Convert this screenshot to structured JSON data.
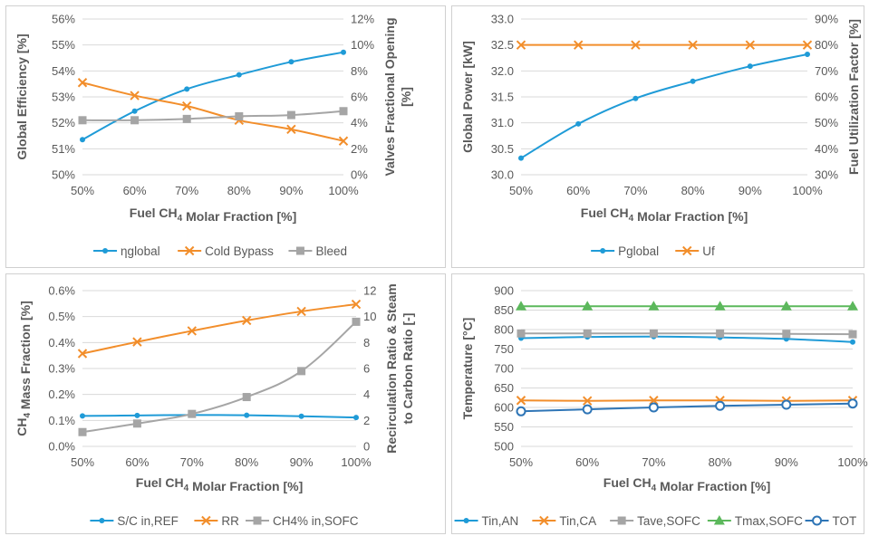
{
  "chart_data": [
    {
      "type": "line",
      "categories": [
        "50%",
        "60%",
        "70%",
        "80%",
        "90%",
        "100%"
      ],
      "xlabel": "Fuel CH₄ Molar Fraction [%]",
      "ylabel": "Global Efficiency [%]",
      "y2label": "Valves Fractional Opening [%]",
      "ylim": [
        50,
        56
      ],
      "y2lim": [
        0,
        12
      ],
      "yticks": [
        "50%",
        "51%",
        "52%",
        "53%",
        "54%",
        "55%",
        "56%"
      ],
      "y2ticks": [
        "0%",
        "2%",
        "4%",
        "6%",
        "8%",
        "10%",
        "12%"
      ],
      "legend_position": "bottom",
      "grid": true,
      "series": [
        {
          "name": "ηglobal",
          "axis": "left",
          "marker": "dot",
          "color": "#1f9bd7",
          "values": [
            51.35,
            52.45,
            53.3,
            53.85,
            54.35,
            54.72
          ]
        },
        {
          "name": "Cold Bypass",
          "axis": "right",
          "marker": "x",
          "color": "#f28e2b",
          "values": [
            7.1,
            6.1,
            5.3,
            4.2,
            3.5,
            2.6
          ]
        },
        {
          "name": "Bleed",
          "axis": "right",
          "marker": "square",
          "color": "#a5a5a5",
          "values": [
            4.2,
            4.2,
            4.3,
            4.5,
            4.6,
            4.9
          ]
        }
      ]
    },
    {
      "type": "line",
      "categories": [
        "50%",
        "60%",
        "70%",
        "80%",
        "90%",
        "100%"
      ],
      "xlabel": "Fuel CH₄ Molar Fraction [%]",
      "ylabel": "Global Power [kW]",
      "y2label": "Fuel Utilization Factor [%]",
      "ylim": [
        30.0,
        33.0
      ],
      "y2lim": [
        30,
        90
      ],
      "yticks": [
        "30.0",
        "30.5",
        "31.0",
        "31.5",
        "32.0",
        "32.5",
        "33.0"
      ],
      "y2ticks": [
        "30%",
        "40%",
        "50%",
        "60%",
        "70%",
        "80%",
        "90%"
      ],
      "legend_position": "bottom",
      "grid": true,
      "series": [
        {
          "name": "Pglobal",
          "axis": "left",
          "marker": "dot",
          "color": "#1f9bd7",
          "values": [
            30.32,
            30.98,
            31.47,
            31.8,
            32.09,
            32.32
          ]
        },
        {
          "name": "Uf",
          "axis": "right",
          "marker": "x",
          "color": "#f28e2b",
          "values": [
            80,
            80,
            80,
            80,
            80,
            80
          ]
        }
      ]
    },
    {
      "type": "line",
      "categories": [
        "50%",
        "60%",
        "70%",
        "80%",
        "90%",
        "100%"
      ],
      "xlabel": "Fuel CH₄ Molar Fraction [%]",
      "ylabel": "CH₄ Mass Fraction [%]",
      "y2label": "Recirculation Ratio & Steam to Carbon Ratio [-]",
      "ylim": [
        0.0,
        0.6
      ],
      "y2lim": [
        0,
        12
      ],
      "yticks": [
        "0.0%",
        "0.1%",
        "0.2%",
        "0.3%",
        "0.4%",
        "0.5%",
        "0.6%"
      ],
      "y2ticks": [
        "0",
        "2",
        "4",
        "6",
        "8",
        "10",
        "12"
      ],
      "legend_position": "bottom",
      "grid": true,
      "series": [
        {
          "name": "S/C in,REF",
          "axis": "right",
          "marker": "dot",
          "color": "#1f9bd7",
          "values": [
            2.35,
            2.38,
            2.42,
            2.4,
            2.32,
            2.22
          ]
        },
        {
          "name": "RR",
          "axis": "right",
          "marker": "x",
          "color": "#f28e2b",
          "values": [
            7.15,
            8.05,
            8.9,
            9.7,
            10.4,
            10.95
          ]
        },
        {
          "name": "CH4% in,SOFC",
          "axis": "left",
          "marker": "square",
          "color": "#a5a5a5",
          "values": [
            0.055,
            0.088,
            0.125,
            0.19,
            0.29,
            0.48
          ]
        }
      ]
    },
    {
      "type": "line",
      "categories": [
        "50%",
        "60%",
        "70%",
        "80%",
        "90%",
        "100%"
      ],
      "xlabel": "Fuel CH₄ Molar Fraction [%]",
      "ylabel": "Temperature [°C]",
      "ylim": [
        500,
        900
      ],
      "yticks": [
        "500",
        "550",
        "600",
        "650",
        "700",
        "750",
        "800",
        "850",
        "900"
      ],
      "legend_position": "bottom",
      "grid": true,
      "series": [
        {
          "name": "Tin,AN",
          "axis": "left",
          "marker": "dot",
          "color": "#1f9bd7",
          "values": [
            778,
            781,
            782,
            780,
            776,
            768
          ]
        },
        {
          "name": "Tin,CA",
          "axis": "left",
          "marker": "x",
          "color": "#f28e2b",
          "values": [
            618,
            617,
            618,
            618,
            617,
            618
          ]
        },
        {
          "name": "Tave,SOFC",
          "axis": "left",
          "marker": "square",
          "color": "#a5a5a5",
          "values": [
            790,
            790,
            790,
            790,
            789,
            788
          ]
        },
        {
          "name": "Tmax,SOFC",
          "axis": "left",
          "marker": "triangle",
          "color": "#5cb85c",
          "values": [
            860,
            860,
            860,
            860,
            860,
            860
          ]
        },
        {
          "name": "TOT",
          "axis": "left",
          "marker": "circle",
          "color": "#2e75b6",
          "values": [
            590,
            595,
            600,
            604,
            607,
            610
          ]
        }
      ]
    }
  ]
}
